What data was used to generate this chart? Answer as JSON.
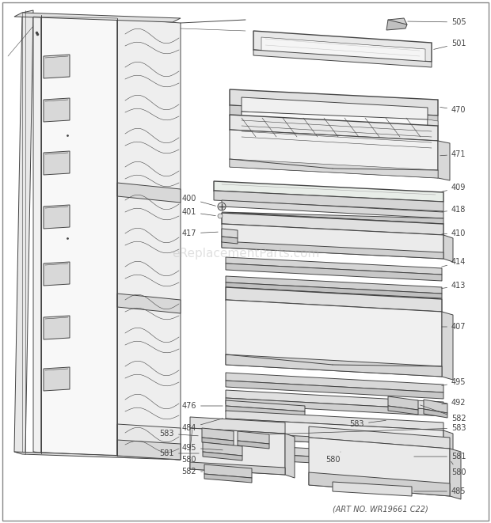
{
  "fig_width": 6.2,
  "fig_height": 6.61,
  "dpi": 100,
  "background_color": "#ffffff",
  "line_color": "#444444",
  "art_no": "(ART NO. WR19661 C22)",
  "watermark_text": "eReplacementParts.com",
  "watermark_color": "#bbbbbb",
  "watermark_alpha": 0.45,
  "lw": 0.7,
  "lw_thin": 0.4,
  "lw_thick": 1.0
}
